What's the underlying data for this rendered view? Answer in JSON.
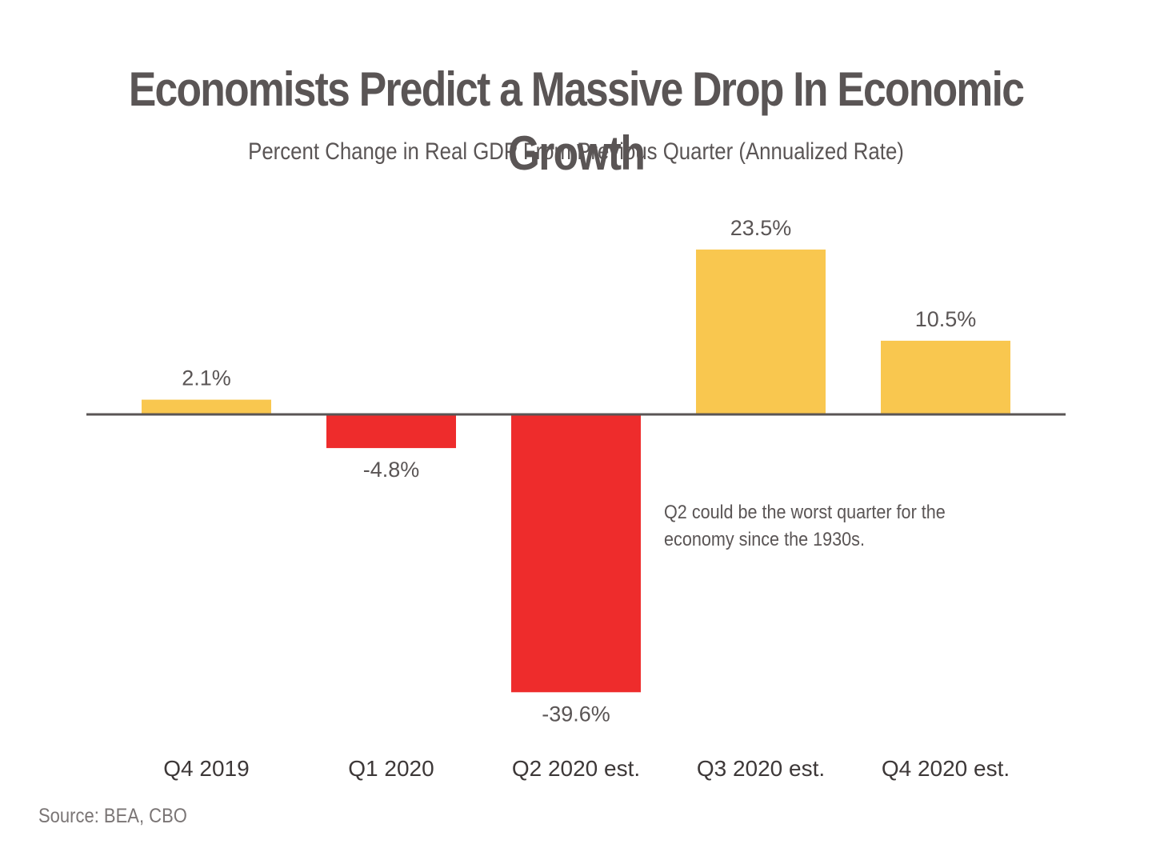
{
  "chart_data": {
    "type": "bar",
    "title": "Economists Predict a Massive Drop In Economic Growth",
    "subtitle": "Percent Change in Real GDP From Previous Quarter (Annualized Rate)",
    "categories": [
      "Q4 2019",
      "Q1 2020",
      "Q2 2020 est.",
      "Q3 2020 est.",
      "Q4 2020 est."
    ],
    "values": [
      2.1,
      -4.8,
      -39.6,
      23.5,
      10.5
    ],
    "value_labels": [
      "2.1%",
      "-4.8%",
      "-39.6%",
      "23.5%",
      "10.5%"
    ],
    "xlabel": "",
    "ylabel": "",
    "ylim": [
      -39.6,
      23.5
    ],
    "grid": false,
    "colors": {
      "positive": "#F9C74F",
      "negative": "#EE2C2C",
      "axis": "#5a5555"
    },
    "annotation": "Q2 could be the worst quarter for the economy since the 1930s.",
    "source": "Source: BEA, CBO"
  }
}
